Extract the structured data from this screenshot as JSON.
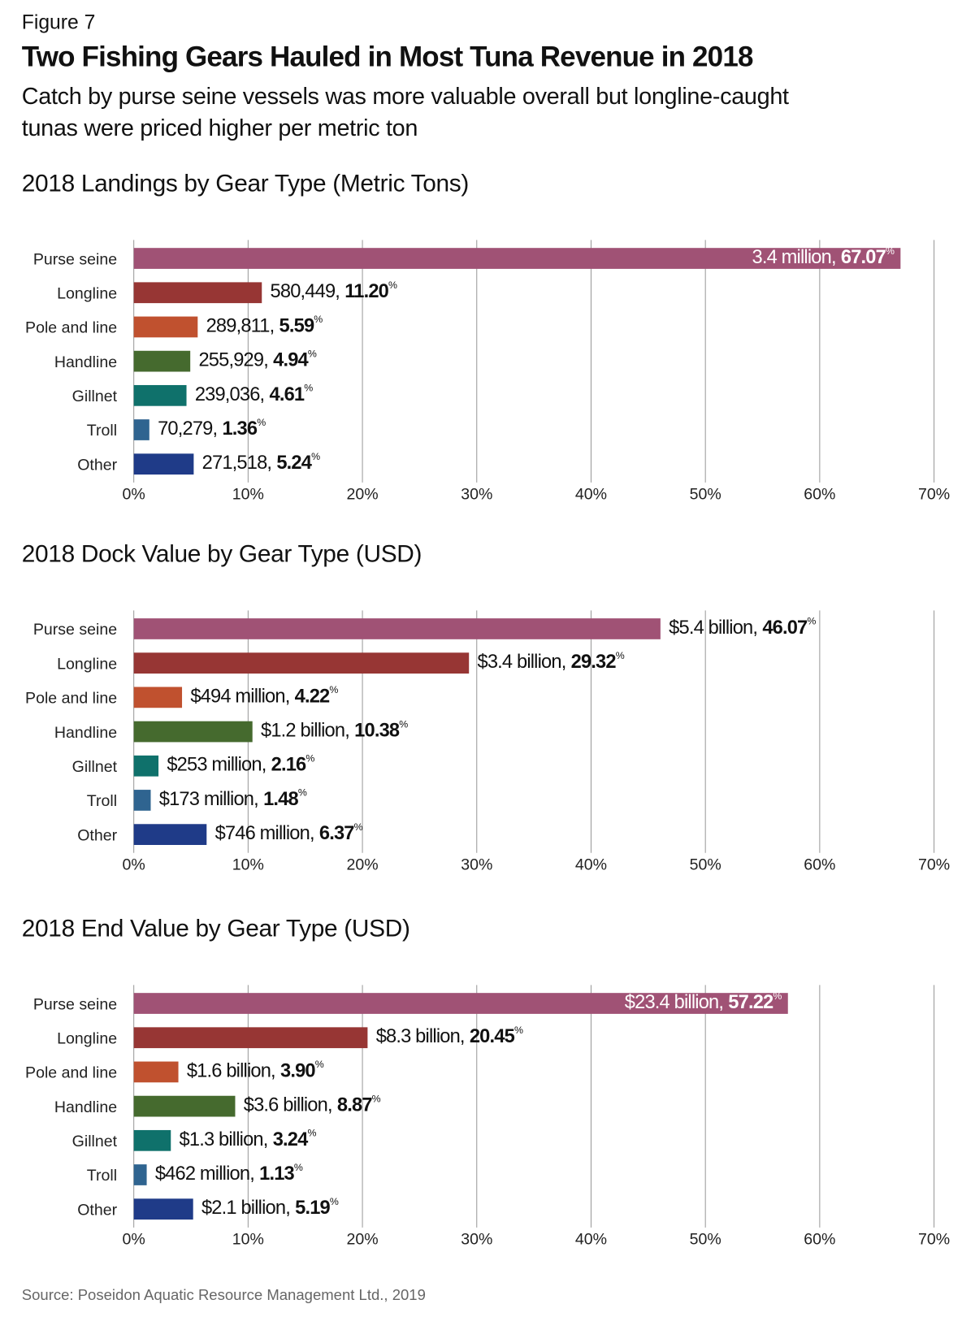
{
  "figure_label": "Figure 7",
  "title": "Two Fishing Gears Hauled in Most Tuna Revenue in 2018",
  "subtitle": [
    "Catch by purse seine vessels was more valuable overall but longline-caught",
    "tunas were priced higher per metric ton"
  ],
  "source": "Source: Poseidon Aquatic Resource Management Ltd., 2019",
  "chart_data": [
    {
      "type": "bar",
      "orientation": "horizontal",
      "title": "2018 Landings by Gear Type (Metric Tons)",
      "categories": [
        "Purse seine",
        "Longline",
        "Pole and line",
        "Handline",
        "Gillnet",
        "Troll",
        "Other"
      ],
      "values": [
        67.07,
        11.2,
        5.59,
        4.94,
        4.61,
        1.36,
        5.24
      ],
      "value_labels": [
        "67.07%",
        "11.20%",
        "5.59%",
        "4.94%",
        "4.61%",
        "1.36%",
        "5.24%"
      ],
      "amounts": [
        "3.4 million,",
        "580,449,",
        "289,811,",
        "255,929,",
        "239,036,",
        "70,279,",
        "271,518,"
      ],
      "colors": [
        "#a05275",
        "#973634",
        "#c0512f",
        "#456a2e",
        "#0f716b",
        "#2f6490",
        "#1f3b88"
      ],
      "xlim": [
        0,
        70
      ],
      "xticks": [
        {
          "value": 0,
          "label": "0%"
        },
        {
          "value": 10,
          "label": "10%"
        },
        {
          "value": 20,
          "label": "20%"
        },
        {
          "value": 30,
          "label": "30%"
        },
        {
          "value": 40,
          "label": "40%"
        },
        {
          "value": 50,
          "label": "50%"
        },
        {
          "value": 60,
          "label": "60%"
        },
        {
          "value": 70,
          "label": "70%"
        }
      ],
      "grid": true
    },
    {
      "type": "bar",
      "orientation": "horizontal",
      "title": "2018 Dock Value by Gear Type (USD)",
      "categories": [
        "Purse seine",
        "Longline",
        "Pole and line",
        "Handline",
        "Gillnet",
        "Troll",
        "Other"
      ],
      "values": [
        46.07,
        29.32,
        4.22,
        10.38,
        2.16,
        1.48,
        6.37
      ],
      "value_labels": [
        "46.07%",
        "29.32%",
        "4.22%",
        "10.38%",
        "2.16%",
        "1.48%",
        "6.37%"
      ],
      "amounts": [
        "$5.4 billion,",
        "$3.4 billion,",
        "$494 million,",
        "$1.2 billion,",
        "$253 million,",
        "$173 million,",
        "$746 million,"
      ],
      "colors": [
        "#a05275",
        "#973634",
        "#c0512f",
        "#456a2e",
        "#0f716b",
        "#2f6490",
        "#1f3b88"
      ],
      "xlim": [
        0,
        70
      ],
      "xticks": [
        {
          "value": 0,
          "label": "0%"
        },
        {
          "value": 10,
          "label": "10%"
        },
        {
          "value": 20,
          "label": "20%"
        },
        {
          "value": 30,
          "label": "30%"
        },
        {
          "value": 40,
          "label": "40%"
        },
        {
          "value": 50,
          "label": "50%"
        },
        {
          "value": 60,
          "label": "60%"
        },
        {
          "value": 70,
          "label": "70%"
        }
      ],
      "grid": true
    },
    {
      "type": "bar",
      "orientation": "horizontal",
      "title": "2018 End Value by Gear Type (USD)",
      "categories": [
        "Purse seine",
        "Longline",
        "Pole and line",
        "Handline",
        "Gillnet",
        "Troll",
        "Other"
      ],
      "values": [
        57.22,
        20.45,
        3.9,
        8.87,
        3.24,
        1.13,
        5.19
      ],
      "value_labels": [
        "57.22%",
        "20.45%",
        "3.90%",
        "8.87%",
        "3.24%",
        "1.13%",
        "5.19%"
      ],
      "amounts": [
        "$23.4 billion,",
        "$8.3 billion,",
        "$1.6 billion,",
        "$3.6 billion,",
        "$1.3 billion,",
        "$462 million,",
        "$2.1 billion,"
      ],
      "colors": [
        "#a05275",
        "#973634",
        "#c0512f",
        "#456a2e",
        "#0f716b",
        "#2f6490",
        "#1f3b88"
      ],
      "xlim": [
        0,
        70
      ],
      "xticks": [
        {
          "value": 0,
          "label": "0%"
        },
        {
          "value": 10,
          "label": "10%"
        },
        {
          "value": 20,
          "label": "20%"
        },
        {
          "value": 30,
          "label": "30%"
        },
        {
          "value": 40,
          "label": "40%"
        },
        {
          "value": 50,
          "label": "50%"
        },
        {
          "value": 60,
          "label": "60%"
        },
        {
          "value": 70,
          "label": "70%"
        }
      ],
      "grid": true
    }
  ]
}
